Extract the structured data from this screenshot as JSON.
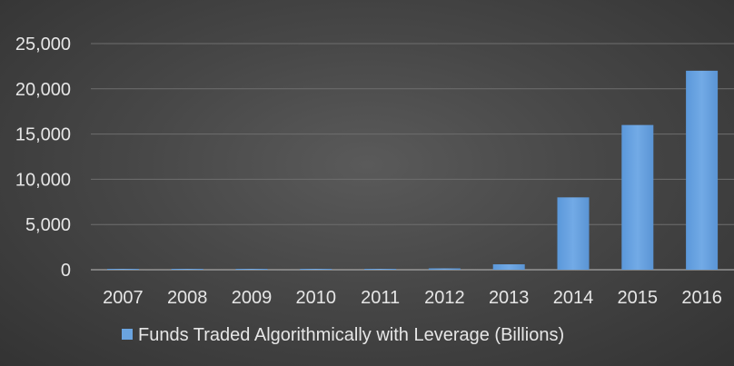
{
  "chart_data": {
    "type": "bar",
    "categories": [
      "2007",
      "2008",
      "2009",
      "2010",
      "2011",
      "2012",
      "2013",
      "2014",
      "2015",
      "2016"
    ],
    "series": [
      {
        "name": "Funds Traded Algorithmically with Leverage (Billions)",
        "values": [
          20,
          25,
          30,
          35,
          40,
          150,
          600,
          8000,
          16000,
          22000
        ],
        "color": "#6aa4e0"
      }
    ],
    "yticks": [
      "0",
      "5,000",
      "10,000",
      "15,000",
      "20,000",
      "25,000"
    ],
    "ylim": [
      0,
      25000
    ],
    "grid": true,
    "legend": "bottom"
  }
}
